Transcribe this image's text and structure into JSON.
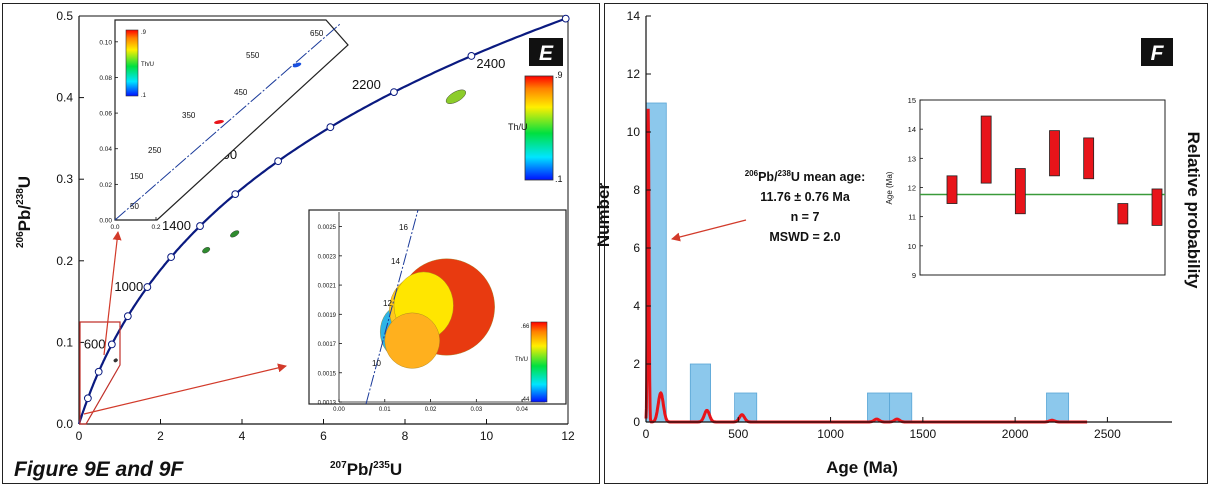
{
  "figure_caption": "Figure 9E and 9F",
  "colors": {
    "concordia": "#0a1a80",
    "marker_fill": "#ffffff",
    "bar": "#8cc8ec",
    "bar_stroke": "#5aa6d6",
    "prob_curve": "#e8141a",
    "arrow": "#d23a2a",
    "mean_line": "#3a9a3a",
    "age_box": "#e8141a"
  },
  "chart_data": [
    {
      "id": "E",
      "panel_label": "E",
      "type": "scatter",
      "xlabel_main": "Pb/",
      "xlabel_mass1": "207",
      "xlabel_mass2": "235",
      "xlabel_elem": "U",
      "ylabel_main": "Pb/",
      "ylabel_mass1": "206",
      "ylabel_mass2": "238",
      "ylabel_elem": "U",
      "xlim": [
        0,
        12
      ],
      "ylim": [
        0,
        0.5
      ],
      "xticks": [
        0,
        2,
        4,
        6,
        8,
        10,
        12
      ],
      "yticks": [
        0,
        0.1,
        0.2,
        0.3,
        0.4,
        0.5
      ],
      "ytick_labels": [
        "0.0",
        "0.1",
        "0.2",
        "0.3",
        "0.4",
        "0.5"
      ],
      "concordia_markers_ma": [
        200,
        400,
        600,
        800,
        1000,
        1200,
        1400,
        1600,
        1800,
        2000,
        2200,
        2400,
        2600
      ],
      "concordia_labels": [
        {
          "age": 600,
          "text": "600"
        },
        {
          "age": 1000,
          "text": "1000"
        },
        {
          "age": 1400,
          "text": "1400"
        },
        {
          "age": 1800,
          "text": "1800"
        },
        {
          "age": 2200,
          "text": "2200"
        },
        {
          "age": 2400,
          "text": "2400"
        }
      ],
      "ellipses": [
        {
          "x": 3.12,
          "y": 0.213,
          "rx": 0.1,
          "ry": 0.003,
          "angle": -30,
          "color": "#2e8b2e"
        },
        {
          "x": 3.82,
          "y": 0.233,
          "rx": 0.12,
          "ry": 0.003,
          "angle": -32,
          "color": "#2e8b2e"
        },
        {
          "x": 0.9,
          "y": 0.078,
          "rx": 0.05,
          "ry": 0.002,
          "angle": -30,
          "color": "#333333"
        },
        {
          "x": 9.25,
          "y": 0.401,
          "rx": 0.27,
          "ry": 0.006,
          "angle": -30,
          "color": "#8ccc2a"
        }
      ],
      "colorbar": {
        "title": "Th/U",
        "max_label": ".9",
        "min_label": ".1"
      },
      "inset_left": {
        "xticks": [
          0,
          0.2
        ],
        "xtick_labels": [
          "0.0",
          "0.2"
        ],
        "yticks": [
          0,
          0.02,
          0.04,
          0.06,
          0.08,
          0.1
        ],
        "ytick_labels": [
          "0.00",
          "0.02",
          "0.04",
          "0.06",
          "0.08",
          "0.10"
        ],
        "age_labels": [
          "50",
          "150",
          "250",
          "350",
          "450",
          "550",
          "650"
        ],
        "colorbar": {
          "title": "Th/U",
          "max_label": ".9",
          "min_label": ".1"
        }
      },
      "inset_right": {
        "xticks": [
          0,
          0.01,
          0.02,
          0.03,
          0.04
        ],
        "xtick_labels": [
          "0.00",
          "0.01",
          "0.02",
          "0.03",
          "0.04"
        ],
        "yticks": [
          0.0013,
          0.0015,
          0.0017,
          0.0019,
          0.0021,
          0.0023,
          0.0025
        ],
        "ytick_labels": [
          "0.0013",
          "0.0015",
          "0.0017",
          "0.0019",
          "0.0021",
          "0.0023",
          "0.0025"
        ],
        "age_labels": [
          {
            "age": 10,
            "text": "10"
          },
          {
            "age": 12,
            "text": "12"
          },
          {
            "age": 14,
            "text": "14"
          },
          {
            "age": 16,
            "text": "16"
          }
        ],
        "ellipses": [
          {
            "x": 0.0235,
            "y": 0.00195,
            "rx": 0.0105,
            "ry": 0.00033,
            "color": "#e83a10"
          },
          {
            "x": 0.0135,
            "y": 0.00178,
            "rx": 0.0045,
            "ry": 0.00018,
            "color": "#2eb4e6"
          },
          {
            "x": 0.0175,
            "y": 0.00193,
            "rx": 0.0065,
            "ry": 0.00023,
            "color": "#ffc81e"
          },
          {
            "x": 0.0185,
            "y": 0.00196,
            "rx": 0.0065,
            "ry": 0.00023,
            "color": "#ffe600"
          },
          {
            "x": 0.016,
            "y": 0.00172,
            "rx": 0.006,
            "ry": 0.00019,
            "color": "#ffb01e"
          }
        ],
        "colorbar": {
          "title": "Th/U",
          "max_label": ".66",
          "min_label": ".44"
        }
      }
    },
    {
      "id": "F",
      "panel_label": "F",
      "type": "bar",
      "xlabel": "Age (Ma)",
      "ylabel": "Number",
      "ylabel_right": "Relative probability",
      "xlim": [
        0,
        2850
      ],
      "ylim": [
        0,
        14
      ],
      "xticks": [
        0,
        500,
        1000,
        1500,
        2000,
        2500
      ],
      "yticks": [
        0,
        2,
        4,
        6,
        8,
        10,
        12,
        14
      ],
      "bins": [
        {
          "x0": 0,
          "x1": 110,
          "count": 11
        },
        {
          "x0": 240,
          "x1": 350,
          "count": 2
        },
        {
          "x0": 480,
          "x1": 600,
          "count": 1
        },
        {
          "x0": 1200,
          "x1": 1320,
          "count": 1
        },
        {
          "x0": 1320,
          "x1": 1440,
          "count": 1
        },
        {
          "x0": 2170,
          "x1": 2290,
          "count": 1
        }
      ],
      "probability_peaks": [
        {
          "age": 12,
          "height": 10.8
        },
        {
          "age": 80,
          "height": 1.0
        },
        {
          "age": 330,
          "height": 0.4
        },
        {
          "age": 520,
          "height": 0.25
        },
        {
          "age": 1250,
          "height": 0.1
        },
        {
          "age": 1360,
          "height": 0.1
        },
        {
          "age": 2200,
          "height": 0.06
        }
      ],
      "probability_curve_end": 2390,
      "annotation": {
        "mass": "206",
        "line1": "Pb/",
        "mass2": "238",
        "line1_tail": "U mean age:",
        "line2": "11.76 ± 0.76 Ma",
        "line3": "n = 7",
        "line4": "MSWD = 2.0"
      },
      "inset": {
        "ylabel": "Age (Ma)",
        "ylim": [
          9,
          15
        ],
        "yticks": [
          9,
          10,
          11,
          12,
          13,
          14,
          15
        ],
        "mean_age": 11.76,
        "boxes": [
          {
            "low": 11.45,
            "high": 12.4
          },
          {
            "low": 12.15,
            "high": 14.45
          },
          {
            "low": 11.1,
            "high": 12.65
          },
          {
            "low": 12.4,
            "high": 13.95
          },
          {
            "low": 12.3,
            "high": 13.7
          },
          {
            "low": 10.75,
            "high": 11.45
          },
          {
            "low": 10.7,
            "high": 11.95
          }
        ]
      }
    }
  ]
}
